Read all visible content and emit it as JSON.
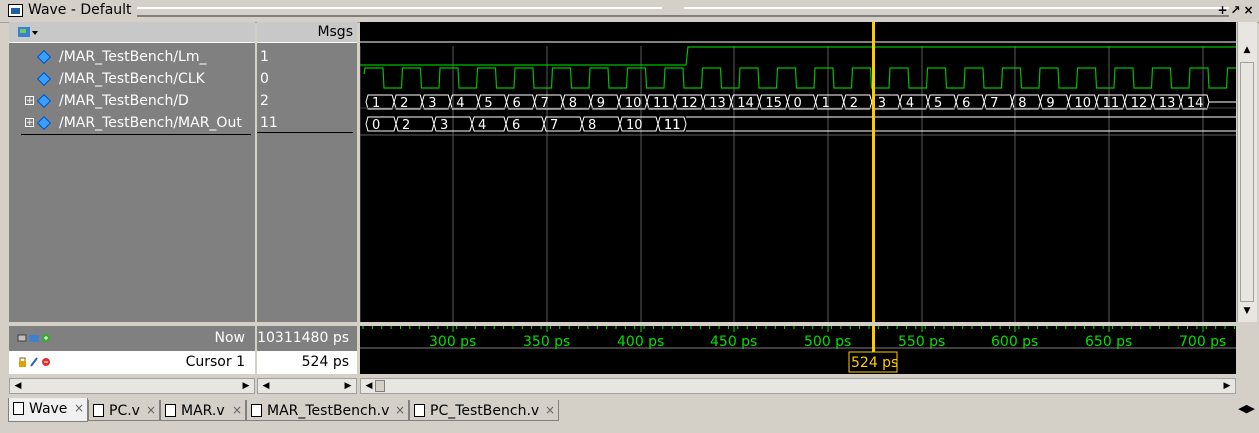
{
  "window": {
    "title": "Wave - Default",
    "controls": [
      "+",
      "↗",
      "×"
    ]
  },
  "header": {
    "msgs_label": "Msgs"
  },
  "signals": [
    {
      "name": "/MAR_TestBench/Lm_",
      "value": "1",
      "expandable": false
    },
    {
      "name": "/MAR_TestBench/CLK",
      "value": "0",
      "expandable": false
    },
    {
      "name": "/MAR_TestBench/D",
      "value": "2",
      "expandable": true
    },
    {
      "name": "/MAR_TestBench/MAR_Out",
      "value": "11",
      "expandable": true
    }
  ],
  "bus_d_values": [
    "1",
    "2",
    "3",
    "4",
    "5",
    "6",
    "7",
    "8",
    "9",
    "10",
    "11",
    "12",
    "13",
    "14",
    "15",
    "0",
    "1",
    "2",
    "3",
    "4",
    "5",
    "6",
    "7",
    "8",
    "9",
    "10",
    "11",
    "12",
    "13",
    "14"
  ],
  "bus_mar_values": [
    "0",
    "2",
    "3",
    "4",
    "6",
    "7",
    "8",
    "10",
    "11"
  ],
  "status": {
    "now_label": "Now",
    "now_value": "10311480 ps",
    "cursor_label": "Cursor 1",
    "cursor_value": "524 ps",
    "cursor_badge": "524 ps"
  },
  "timeline": {
    "ticks": [
      "300 ps",
      "350 ps",
      "400 ps",
      "450 ps",
      "500 ps",
      "550 ps",
      "600 ps",
      "650 ps",
      "700 ps"
    ]
  },
  "tabs": [
    {
      "label": "Wave",
      "active": true
    },
    {
      "label": "PC.v",
      "active": false
    },
    {
      "label": "MAR.v",
      "active": false
    },
    {
      "label": "MAR_TestBench.v",
      "active": false
    },
    {
      "label": "PC_TestBench.v",
      "active": false
    }
  ],
  "colors": {
    "wave": "#00c000",
    "cursor": "#ffcc00",
    "grid": "#5a5a5a",
    "timeline_text": "#00e000"
  }
}
